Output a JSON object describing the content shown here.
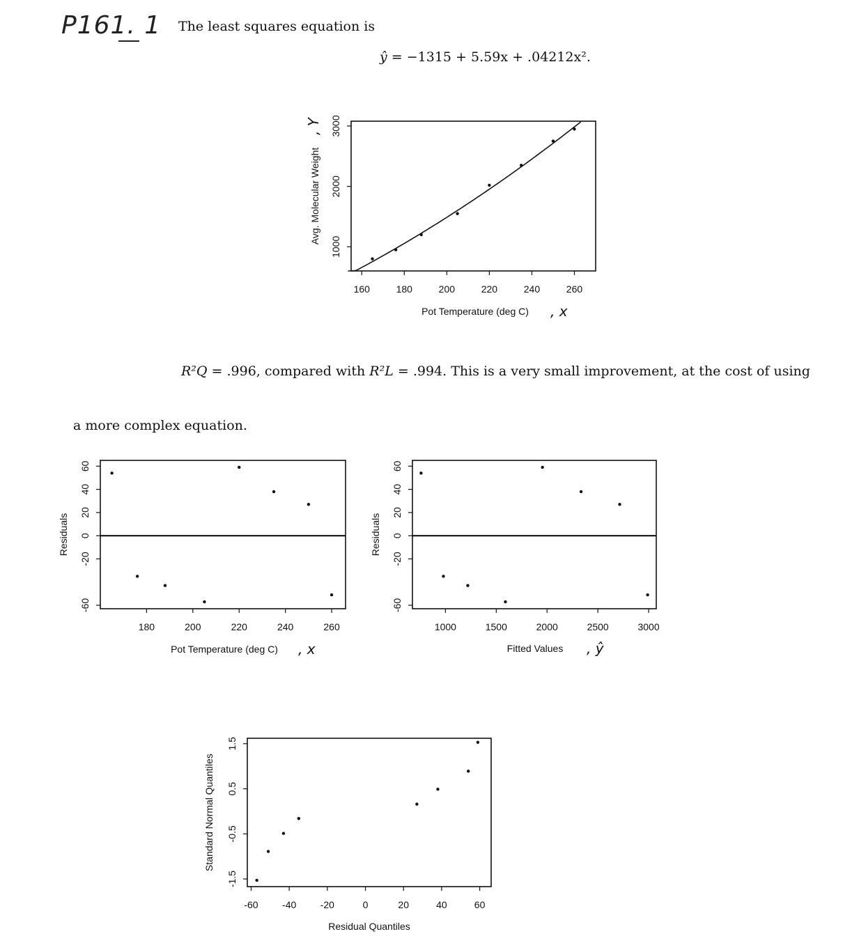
{
  "header": {
    "problem_label": "P161. 1",
    "intro_text": "The least squares equation is"
  },
  "equation": {
    "lhs": "ŷ",
    "rhs": "= −1315 + 5.59x + .04212x²."
  },
  "r2_line": {
    "rq": "R²Q",
    "part1": "= .996, compared with",
    "rl": "R²L",
    "part2": "= .994. This is a very small improvement, at the cost of using"
  },
  "continuation": "a more complex equation.",
  "chart_data": [
    {
      "type": "scatter",
      "fit_curve": {
        "a": -1315,
        "b": 5.59,
        "c": 0.04212,
        "x_range": [
          153.5,
          263
        ]
      },
      "xlabel": "Pot Temperature (deg C)",
      "xlabel_hand": ", x",
      "ylabel": "Avg. Molecular Weight",
      "ylabel_hand": ", Y",
      "xlim": [
        155,
        270
      ],
      "ylim": [
        600,
        3080
      ],
      "x_ticks": [
        160,
        180,
        200,
        220,
        240,
        260
      ],
      "y_ticks": [
        1000,
        2000,
        3000
      ],
      "x": [
        165,
        176,
        188,
        205,
        220,
        235,
        250,
        260
      ],
      "y": [
        800,
        950,
        1200,
        1550,
        2020,
        2350,
        2750,
        2950
      ]
    },
    {
      "type": "scatter",
      "xlabel": "Pot Temperature (deg C)",
      "xlabel_hand": ", x",
      "ylabel": "Residuals",
      "xlim": [
        160,
        266
      ],
      "ylim": [
        -63,
        65
      ],
      "x_ticks": [
        180,
        200,
        220,
        240,
        260
      ],
      "y_ticks": [
        60,
        40,
        20,
        0,
        -20,
        -60
      ],
      "hline": 0,
      "x": [
        165,
        176,
        188,
        205,
        220,
        235,
        250,
        260
      ],
      "y": [
        54,
        -35,
        -43,
        -57,
        59,
        38,
        27,
        -51
      ]
    },
    {
      "type": "scatter",
      "xlabel": "Fitted Values",
      "xlabel_hand": ", ŷ",
      "ylabel": "Residuals",
      "xlim": [
        675,
        3075
      ],
      "ylim": [
        -63,
        65
      ],
      "x_ticks": [
        1000,
        1500,
        2000,
        2500,
        3000
      ],
      "y_ticks": [
        60,
        40,
        20,
        0,
        -20,
        -60
      ],
      "hline": 0,
      "x": [
        760,
        980,
        1220,
        1590,
        1955,
        2335,
        2715,
        2990
      ],
      "y": [
        54,
        -35,
        -43,
        -57,
        59,
        38,
        27,
        -51
      ]
    },
    {
      "type": "scatter",
      "xlabel": "Residual Quantiles",
      "ylabel": "Standard Normal Quantiles",
      "xlim": [
        -62,
        66
      ],
      "ylim": [
        -1.67,
        1.62
      ],
      "x_ticks": [
        -60,
        -40,
        -20,
        0,
        20,
        40,
        60
      ],
      "y_ticks": [
        1.5,
        0.5,
        -0.5,
        -1.5
      ],
      "x": [
        -57,
        -51,
        -43,
        -35,
        27,
        38,
        54,
        59
      ],
      "y": [
        -1.53,
        -0.89,
        -0.49,
        -0.16,
        0.16,
        0.49,
        0.89,
        1.53
      ]
    }
  ]
}
